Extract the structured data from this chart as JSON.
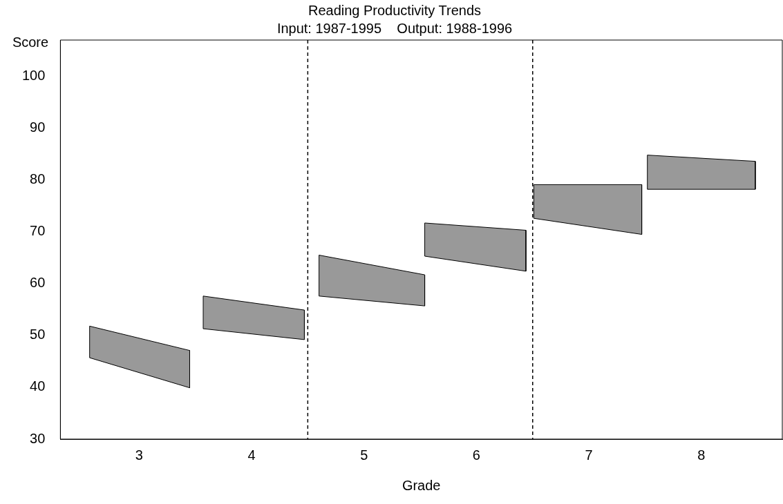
{
  "chart_data": {
    "type": "area",
    "title": "Reading Productivity Trends",
    "subtitle": "Input: 1987-1995    Output: 1988-1996",
    "xlabel": "Grade",
    "ylabel": "Score",
    "xlim": [
      2.3,
      8.72
    ],
    "xticks": [
      3,
      4,
      5,
      6,
      7,
      8
    ],
    "ylim": [
      30,
      107
    ],
    "yticks": [
      30,
      40,
      50,
      60,
      70,
      80,
      90,
      100
    ],
    "series": [
      {
        "color": "#999999",
        "x": [
          2.56,
          2.56,
          3.45,
          3.45,
          2.56
        ],
        "values": [
          45.7,
          51.8,
          47.1,
          39.9,
          45.7
        ]
      },
      {
        "color": "#999999",
        "x": [
          3.57,
          3.57,
          4.47,
          4.47,
          3.57
        ],
        "values": [
          51.3,
          57.6,
          54.9,
          49.2,
          51.3
        ]
      },
      {
        "color": "#999999",
        "x": [
          4.6,
          4.6,
          5.54,
          5.54,
          4.6
        ],
        "values": [
          57.6,
          65.5,
          61.7,
          55.7,
          57.6
        ]
      },
      {
        "color": "#999999",
        "x": [
          5.54,
          5.54,
          6.44,
          6.44,
          5.54
        ],
        "values": [
          65.3,
          71.7,
          70.3,
          62.4,
          65.3
        ]
      },
      {
        "color": "#999999",
        "x": [
          6.51,
          6.51,
          7.47,
          7.47,
          6.51
        ],
        "values": [
          72.6,
          79.1,
          79.1,
          69.5,
          72.6
        ]
      },
      {
        "color": "#999999",
        "x": [
          7.52,
          7.52,
          8.48,
          8.48,
          7.52
        ],
        "values": [
          78.2,
          84.8,
          83.6,
          78.2,
          78.2
        ]
      }
    ],
    "ref_lines": [
      {
        "axis": "x",
        "value": 4.5,
        "line_style": "dashed",
        "color": "#000000"
      },
      {
        "axis": "x",
        "value": 6.5,
        "line_style": "dashed",
        "color": "#000000"
      }
    ]
  }
}
